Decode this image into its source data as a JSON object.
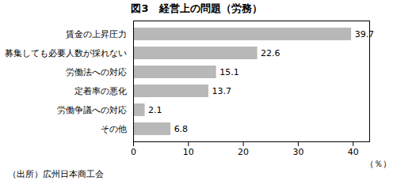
{
  "chart_data": {
    "type": "bar",
    "orientation": "horizontal",
    "title": "図3　経営上の問題（労務）",
    "categories": [
      "賃金の上昇圧力",
      "募集しても必要人数が採れない",
      "労働法への対応",
      "定着率の悪化",
      "労働争議への対応",
      "その他"
    ],
    "values": [
      39.7,
      22.6,
      15.1,
      13.7,
      2.1,
      6.8
    ],
    "color": "#b8b8b8",
    "xlim": [
      0,
      43
    ],
    "xticks": [
      0,
      10,
      20,
      30,
      40
    ],
    "xlabel": "（％）",
    "source": "（出所）広州日本商工会",
    "data_labels": true,
    "grid": false
  }
}
